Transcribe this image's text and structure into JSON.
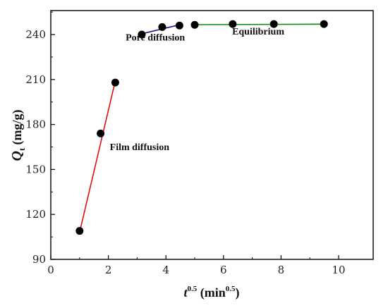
{
  "chart_data": {
    "type": "scatter",
    "xlim": [
      0,
      11.2
    ],
    "ylim": [
      90,
      256
    ],
    "x_ticks": [
      0,
      2,
      4,
      6,
      8,
      10
    ],
    "y_ticks": [
      90,
      120,
      150,
      180,
      210,
      240
    ],
    "xlabel": {
      "base": "t",
      "sup": "0.5",
      "unit_open": " (min",
      "unit_sup": "0.5",
      "unit_close": ")"
    },
    "ylabel": {
      "base": "Q",
      "sub": "t",
      "unit": " (mg/g)"
    },
    "grid": false,
    "legend": "none",
    "series": [
      {
        "name": "Film diffusion",
        "color": "#e01010",
        "points": [
          [
            1.0,
            109
          ],
          [
            1.73,
            174
          ],
          [
            2.24,
            208
          ]
        ],
        "fit": [
          [
            1.0,
            108
          ],
          [
            2.24,
            209
          ]
        ]
      },
      {
        "name": "Pore diffusion",
        "color": "#1a1a8c",
        "points": [
          [
            3.16,
            240
          ],
          [
            3.87,
            245
          ],
          [
            4.47,
            246
          ]
        ],
        "fit": [
          [
            3.16,
            240.5
          ],
          [
            4.47,
            246.5
          ]
        ]
      },
      {
        "name": "Equilibrium",
        "color": "#0a8a0a",
        "points": [
          [
            5.0,
            246.5
          ],
          [
            6.32,
            247
          ],
          [
            7.75,
            247
          ],
          [
            9.49,
            247
          ]
        ],
        "fit": [
          [
            5.0,
            246.6
          ],
          [
            9.49,
            246.9
          ]
        ]
      }
    ],
    "annotations": [
      {
        "text": "Film diffusion",
        "x": 2.05,
        "y": 163
      },
      {
        "text": "Pore diffusion",
        "x": 2.6,
        "y": 236
      },
      {
        "text": "Equilibrium",
        "x": 6.3,
        "y": 240
      }
    ]
  }
}
